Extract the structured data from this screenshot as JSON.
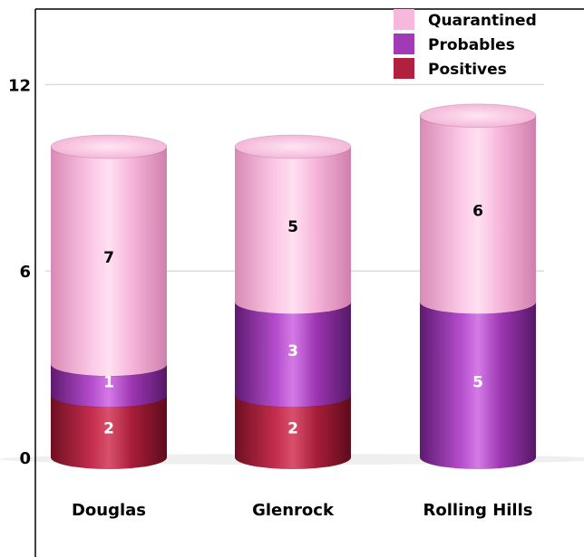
{
  "chart_data": {
    "type": "bar",
    "stacked": true,
    "style": "3d-cylinder",
    "categories": [
      "Douglas",
      "Glenrock",
      "Rolling Hills"
    ],
    "series": [
      {
        "name": "Positives",
        "values": [
          2,
          2,
          0
        ],
        "color": "#b0213f"
      },
      {
        "name": "Probables",
        "values": [
          1,
          3,
          5
        ],
        "color": "#a03ab5"
      },
      {
        "name": "Quarantined",
        "values": [
          7,
          5,
          6
        ],
        "color": "#f7b8de"
      }
    ],
    "yticks": [
      "0",
      "6",
      "12"
    ],
    "ylim": [
      0,
      13.5
    ],
    "grid": true,
    "legend": {
      "position": "top-right",
      "order": [
        "Quarantined",
        "Probables",
        "Positives"
      ]
    },
    "label_colors": {
      "Positives": "#ffffff",
      "Probables": "#ffffff",
      "Quarantined": "#000000"
    }
  }
}
